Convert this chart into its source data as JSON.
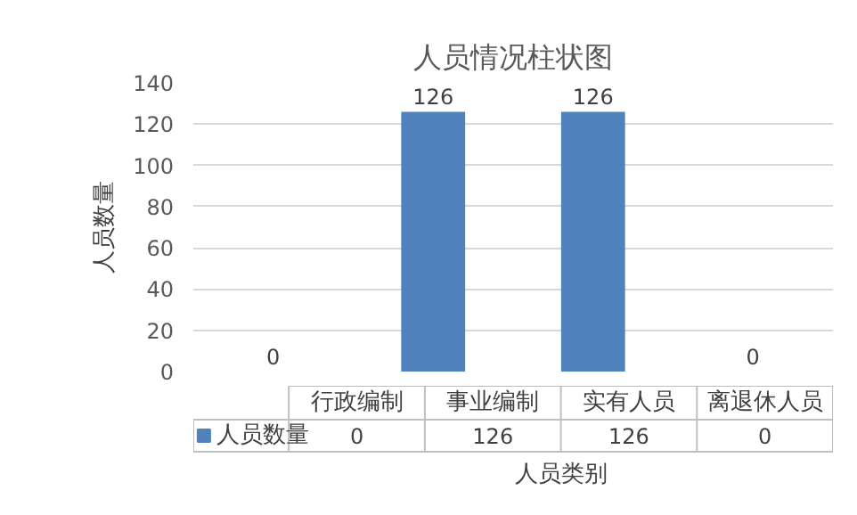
{
  "chart_data": {
    "type": "bar",
    "title": "人员情况柱状图",
    "xlabel": "人员类别",
    "ylabel": "人员数量",
    "categories": [
      "行政编制",
      "事业编制",
      "实有人员",
      "离退休人员"
    ],
    "series": [
      {
        "name": "人员数量",
        "color": "#4f81bd",
        "values": [
          0,
          126,
          126,
          0
        ]
      }
    ],
    "annotations": [
      "0",
      "126",
      "126",
      "0"
    ],
    "ylim": [
      0,
      140
    ],
    "yticks": [
      0,
      20,
      40,
      60,
      80,
      100,
      120,
      140
    ],
    "grid": "y",
    "legend": "bottom",
    "data_labels": true
  }
}
